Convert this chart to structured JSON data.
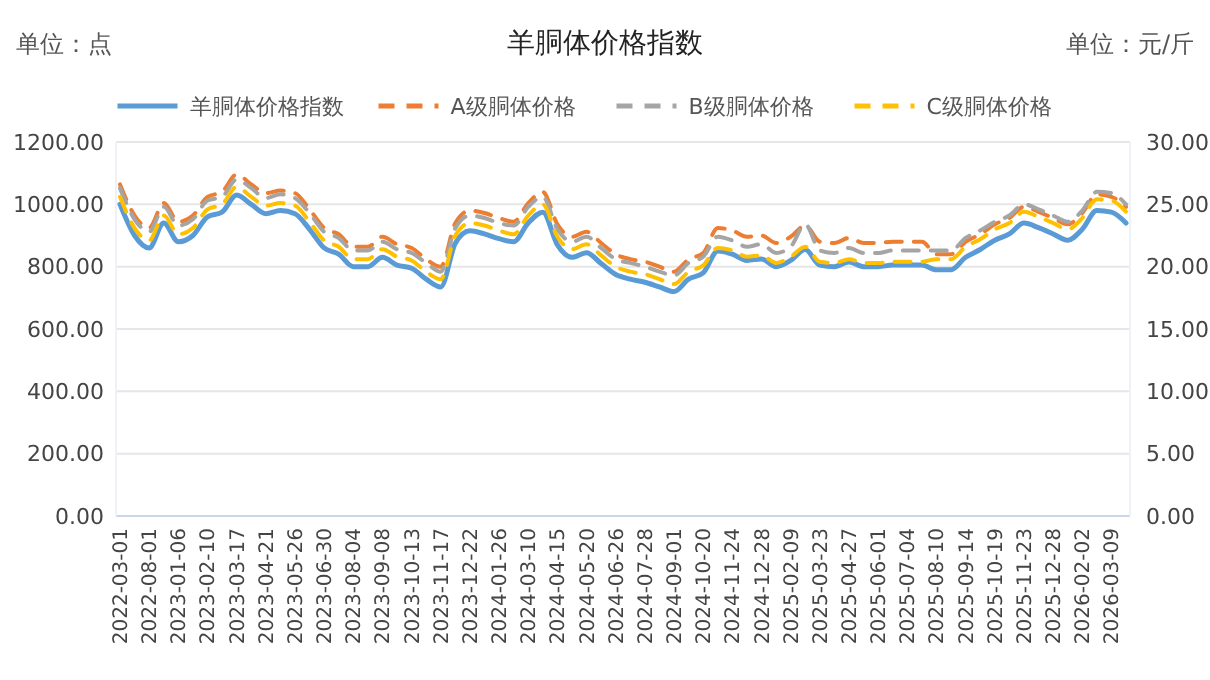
{
  "chart_data": {
    "type": "line",
    "title": "羊胴体价格指数",
    "ylabel": "单位：点",
    "y2label": "单位：元/斤",
    "categories": [
      "2022-03-01",
      null,
      "2022-08-01",
      null,
      "2023-01-06",
      null,
      "2023-02-10",
      null,
      "2023-03-17",
      null,
      "2023-04-21",
      null,
      "2023-05-26",
      null,
      "2023-06-30",
      null,
      "2023-08-04",
      null,
      "2023-09-08",
      null,
      "2023-10-13",
      null,
      "2023-11-17",
      null,
      "2023-12-22",
      null,
      "2024-01-26",
      null,
      "2024-03-10",
      null,
      "2024-04-15",
      null,
      "2024-05-20",
      null,
      "2024-06-26",
      null,
      "2024-07-28",
      null,
      "2024-09-01",
      null,
      "2024-10-20",
      null,
      "2024-11-24",
      null,
      "2024-12-28",
      null,
      "2025-02-09",
      null,
      "2025-03-23",
      null,
      "2025-04-27",
      null,
      "2025-06-01",
      null,
      "2025-07-04",
      null,
      "2025-08-10",
      null,
      "2025-09-14",
      null,
      "2025-10-19",
      null,
      "2025-11-23",
      null,
      "2025-12-28",
      null,
      "2026-02-02",
      null,
      "2026-03-09",
      null
    ],
    "series": [
      {
        "name": "羊胴体价格指数",
        "color": "#5b9bd5",
        "line_style": "solid",
        "values": [
          1000,
          900,
          860,
          940,
          880,
          900,
          960,
          975,
          1030,
          1000,
          970,
          980,
          970,
          920,
          860,
          840,
          800,
          800,
          830,
          805,
          795,
          760,
          735,
          875,
          915,
          905,
          890,
          880,
          940,
          975,
          870,
          830,
          845,
          810,
          775,
          760,
          750,
          735,
          720,
          760,
          780,
          850,
          840,
          820,
          825,
          800,
          820,
          855,
          805,
          800,
          815,
          800,
          800,
          805,
          805,
          805,
          790,
          790,
          830,
          855,
          885,
          905,
          940,
          925,
          905,
          885,
          920,
          980,
          975,
          940
        ]
      },
      {
        "name": "A级胴体价格",
        "color": "#ed7d31",
        "line_style": "dashed",
        "axis": "y2",
        "values": [
          26.6,
          24.1,
          23.1,
          25.1,
          23.6,
          24.1,
          25.6,
          26.0,
          27.4,
          26.6,
          25.9,
          26.1,
          25.9,
          24.6,
          23.1,
          22.6,
          21.6,
          21.6,
          22.4,
          21.8,
          21.5,
          20.6,
          20.0,
          23.5,
          24.5,
          24.3,
          23.9,
          23.6,
          25.1,
          26.0,
          23.4,
          22.4,
          22.8,
          21.9,
          21.0,
          20.6,
          20.4,
          20.0,
          19.6,
          20.6,
          21.1,
          23.1,
          22.9,
          22.4,
          22.5,
          21.9,
          22.4,
          23.3,
          22.0,
          21.9,
          22.3,
          21.9,
          21.9,
          22.0,
          22.0,
          22.0,
          21.0,
          21.0,
          22.0,
          22.6,
          23.4,
          23.9,
          24.8,
          24.4,
          23.9,
          23.4,
          24.3,
          25.8,
          25.6,
          24.8
        ]
      },
      {
        "name": "B级胴体价格",
        "color": "#a5a5a5",
        "line_style": "dashed",
        "axis": "y2",
        "values": [
          26.3,
          23.8,
          22.8,
          24.8,
          23.3,
          23.8,
          25.3,
          25.6,
          27.0,
          26.3,
          25.5,
          25.8,
          25.5,
          24.3,
          22.8,
          22.3,
          21.3,
          21.3,
          22.0,
          21.4,
          21.1,
          20.3,
          19.6,
          23.1,
          24.1,
          23.9,
          23.5,
          23.3,
          24.8,
          25.6,
          23.0,
          22.0,
          22.4,
          21.5,
          20.6,
          20.3,
          20.0,
          19.6,
          19.3,
          20.3,
          20.8,
          22.4,
          22.1,
          21.6,
          21.8,
          21.1,
          21.6,
          23.4,
          21.3,
          21.1,
          21.5,
          21.1,
          21.1,
          21.3,
          21.3,
          21.3,
          21.3,
          21.3,
          22.3,
          22.9,
          23.6,
          24.1,
          25.0,
          24.6,
          24.1,
          23.6,
          24.5,
          26.0,
          25.9,
          25.0
        ]
      },
      {
        "name": "C级胴体价格",
        "color": "#ffc000",
        "line_style": "dashed",
        "axis": "y2",
        "values": [
          25.6,
          23.1,
          22.1,
          24.1,
          22.6,
          23.1,
          24.6,
          25.0,
          26.4,
          25.6,
          24.9,
          25.1,
          24.9,
          23.6,
          22.1,
          21.6,
          20.6,
          20.6,
          21.4,
          20.8,
          20.5,
          19.6,
          19.0,
          22.5,
          23.5,
          23.3,
          22.9,
          22.6,
          24.1,
          25.0,
          22.4,
          21.4,
          21.8,
          20.9,
          20.0,
          19.6,
          19.4,
          19.0,
          18.6,
          19.6,
          20.1,
          21.5,
          21.3,
          20.8,
          20.9,
          20.3,
          20.8,
          21.6,
          20.4,
          20.3,
          20.6,
          20.3,
          20.3,
          20.4,
          20.4,
          20.4,
          20.6,
          20.6,
          21.6,
          22.2,
          23.0,
          23.5,
          24.4,
          24.0,
          23.5,
          23.0,
          23.9,
          25.4,
          25.3,
          24.4
        ]
      }
    ],
    "ylim": [
      0,
      1200
    ],
    "yticks": [
      {
        "value": 0,
        "label": "0.00"
      },
      {
        "value": 200,
        "label": "200.00"
      },
      {
        "value": 400,
        "label": "400.00"
      },
      {
        "value": 600,
        "label": "600.00"
      },
      {
        "value": 800,
        "label": "800.00"
      },
      {
        "value": 1000,
        "label": "1000.00"
      },
      {
        "value": 1200,
        "label": "1200.00"
      }
    ],
    "y2lim": [
      0,
      30
    ],
    "y2ticks": [
      {
        "value": 0,
        "label": "0.00"
      },
      {
        "value": 5,
        "label": "5.00"
      },
      {
        "value": 10,
        "label": "10.00"
      },
      {
        "value": 15,
        "label": "15.00"
      },
      {
        "value": 20,
        "label": "20.00"
      },
      {
        "value": 25,
        "label": "25.00"
      },
      {
        "value": 30,
        "label": "30.00"
      }
    ],
    "grid": "y",
    "legend": "top",
    "marker": "none"
  }
}
